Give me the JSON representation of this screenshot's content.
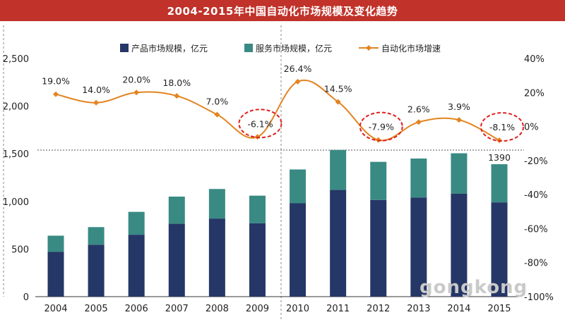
{
  "title": "2004-2015年中国自动化市场规模及变化趋势",
  "watermark": "gongkong",
  "colors": {
    "title_bg": "#c0322a",
    "product": "#253766",
    "service": "#3a8a84",
    "growth": "#e38420",
    "highlight": "#e02020"
  },
  "legend": {
    "product": "产品市场规模，亿元",
    "service": "服务市场规模，亿元",
    "growth": "自动化市场增速"
  },
  "chart_data": {
    "type": "bar",
    "categories": [
      "2004",
      "2005",
      "2006",
      "2007",
      "2008",
      "2009",
      "2010",
      "2011",
      "2012",
      "2013",
      "2014",
      "2015"
    ],
    "series": [
      {
        "name": "产品市场规模，亿元",
        "kind": "stacked-bar",
        "axis": "left",
        "values": [
          470,
          545,
          650,
          765,
          820,
          770,
          980,
          1120,
          1015,
          1040,
          1080,
          990
        ]
      },
      {
        "name": "服务市场规模，亿元",
        "kind": "stacked-bar",
        "axis": "left",
        "values": [
          170,
          185,
          240,
          285,
          310,
          290,
          355,
          420,
          400,
          410,
          425,
          400
        ]
      },
      {
        "name": "自动化市场增速",
        "kind": "line",
        "axis": "right",
        "unit": "%",
        "values": [
          19.0,
          14.0,
          20.0,
          18.0,
          7.0,
          -6.1,
          26.4,
          14.5,
          -7.9,
          2.6,
          3.9,
          -8.1
        ]
      }
    ],
    "growth_labels": [
      "19.0%",
      "14.0%",
      "20.0%",
      "18.0%",
      "7.0%",
      "-6.1%",
      "26.4%",
      "14.5%",
      "-7.9%",
      "2.6%",
      "3.9%",
      "-8.1%"
    ],
    "highlighted_years": [
      "2009",
      "2012",
      "2015"
    ],
    "bar_total_labels": [
      {
        "category": "2015",
        "text": "1390"
      }
    ],
    "left_axis": {
      "ylim": [
        0,
        2500
      ],
      "ticks": [
        "0",
        "500",
        "1,000",
        "1,500",
        "2,000",
        "2,500"
      ]
    },
    "right_axis": {
      "ylim": [
        -100,
        40
      ],
      "ticks": [
        "40%",
        "20%",
        "0%",
        "-20%",
        "-40%",
        "-60%",
        "-80%",
        "-100%"
      ]
    },
    "legend_position": "top",
    "grid": false
  }
}
